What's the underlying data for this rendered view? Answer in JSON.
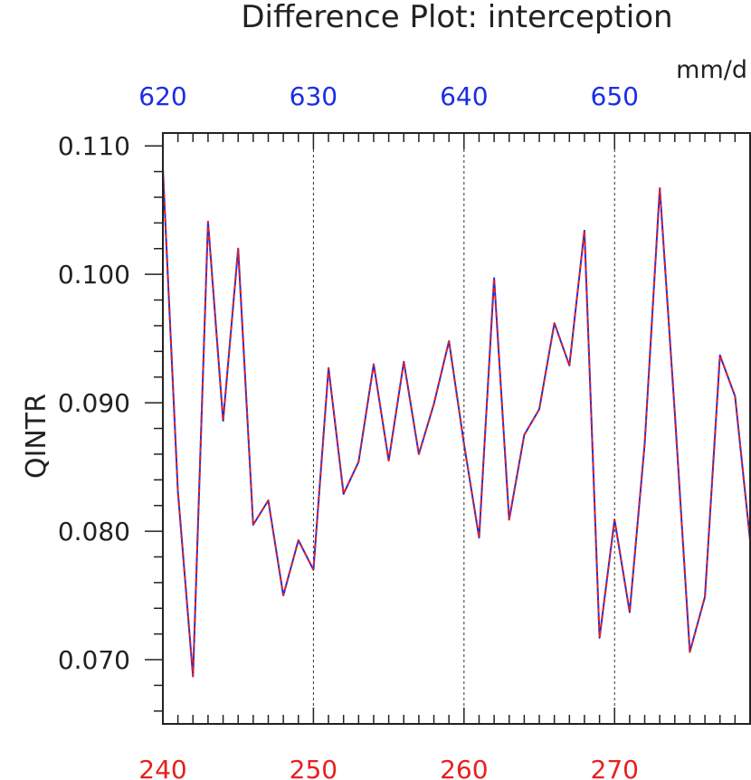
{
  "chart_data": {
    "type": "line",
    "title": "Difference Plot: interception",
    "units": "mm/d",
    "ylabel": "QINTR",
    "ylim": [
      0.065,
      0.111
    ],
    "yticks": [
      "0.070",
      "0.080",
      "0.090",
      "0.100",
      "0.110"
    ],
    "ytick_values": [
      0.07,
      0.08,
      0.09,
      0.1,
      0.11
    ],
    "x_bottom": {
      "range": [
        240,
        279
      ],
      "ticks": [
        "240",
        "250",
        "260",
        "270"
      ],
      "tick_values": [
        240,
        250,
        260,
        270
      ],
      "color": "#e8201c"
    },
    "x_top": {
      "range": [
        620,
        659
      ],
      "ticks": [
        "620",
        "630",
        "640",
        "650"
      ],
      "tick_values": [
        620,
        630,
        640,
        650
      ],
      "color": "#1a2ee6"
    },
    "grid": "vertical dashed at 250, 260, 270",
    "series": [
      {
        "color": "#1a2ee6",
        "style": "solid",
        "x": [
          240,
          241,
          242,
          243,
          244,
          245,
          246,
          247,
          248,
          249,
          250,
          251,
          252,
          253,
          254,
          255,
          256,
          257,
          258,
          259,
          260,
          261,
          262,
          263,
          264,
          265,
          266,
          267,
          268,
          269,
          270,
          271,
          272,
          273,
          274,
          275,
          276,
          277,
          278,
          279
        ],
        "values": [
          0.1082,
          0.0831,
          0.0687,
          0.1041,
          0.0886,
          0.102,
          0.0805,
          0.0824,
          0.075,
          0.0793,
          0.077,
          0.0927,
          0.0829,
          0.0854,
          0.093,
          0.0855,
          0.0932,
          0.086,
          0.0899,
          0.0948,
          0.0868,
          0.0795,
          0.0997,
          0.0809,
          0.0875,
          0.0895,
          0.0962,
          0.0929,
          0.1034,
          0.0717,
          0.0809,
          0.0737,
          0.0868,
          0.1067,
          0.0892,
          0.0706,
          0.0749,
          0.0937,
          0.0905,
          0.0793
        ]
      },
      {
        "color": "#e8201c",
        "style": "dashed",
        "x": [
          240,
          241,
          242,
          243,
          244,
          245,
          246,
          247,
          248,
          249,
          250,
          251,
          252,
          253,
          254,
          255,
          256,
          257,
          258,
          259,
          260,
          261,
          262,
          263,
          264,
          265,
          266,
          267,
          268,
          269,
          270,
          271,
          272,
          273,
          274,
          275,
          276,
          277,
          278,
          279
        ],
        "values": [
          0.1082,
          0.0831,
          0.0687,
          0.1041,
          0.0886,
          0.102,
          0.0805,
          0.0824,
          0.075,
          0.0793,
          0.077,
          0.0927,
          0.0829,
          0.0854,
          0.093,
          0.0855,
          0.0932,
          0.086,
          0.0899,
          0.0948,
          0.0868,
          0.0795,
          0.0997,
          0.0809,
          0.0875,
          0.0895,
          0.0962,
          0.0929,
          0.1034,
          0.0717,
          0.0809,
          0.0737,
          0.0868,
          0.1067,
          0.0892,
          0.0706,
          0.0749,
          0.0937,
          0.0905,
          0.0793
        ]
      }
    ]
  }
}
